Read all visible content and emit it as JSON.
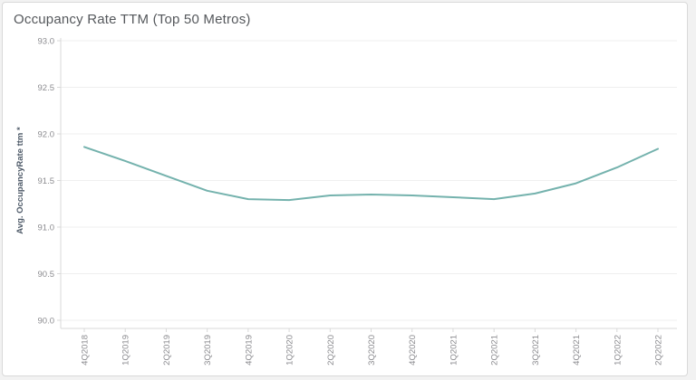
{
  "window": {
    "title": "Occupancy Rate TTM (Top 50 Metros)"
  },
  "colors": {
    "line": "#74b2ad",
    "title_text": "#55585c",
    "axis_title_text": "#4e5a68",
    "tick_text": "#8c8c90",
    "gridline": "#efefef",
    "axis_line": "#d9d9d9",
    "card_background": "#ffffff",
    "card_border": "#d9d9d9"
  },
  "chart_data": {
    "type": "line",
    "title": "Occupancy Rate TTM (Top 50 Metros)",
    "xlabel": "",
    "ylabel": "Avg. OccupancyRate ttm *",
    "categories": [
      "4Q2018",
      "1Q2019",
      "2Q2019",
      "3Q2019",
      "4Q2019",
      "1Q2020",
      "2Q2020",
      "3Q2020",
      "4Q2020",
      "1Q2021",
      "2Q2021",
      "3Q2021",
      "4Q2021",
      "1Q2022",
      "2Q2022"
    ],
    "series": [
      {
        "name": "Avg. OccupancyRate ttm",
        "values": [
          91.86,
          91.71,
          91.55,
          91.39,
          91.3,
          91.29,
          91.34,
          91.35,
          91.34,
          91.32,
          91.3,
          91.36,
          91.47,
          91.64,
          91.84
        ]
      }
    ],
    "ylim": [
      90.0,
      93.0
    ],
    "yticks": [
      90.0,
      90.5,
      91.0,
      91.5,
      92.0,
      92.5,
      93.0
    ],
    "ytick_format_decimals": 1,
    "grid": "horizontal",
    "legend": false,
    "line_color": "#74b2ad"
  }
}
